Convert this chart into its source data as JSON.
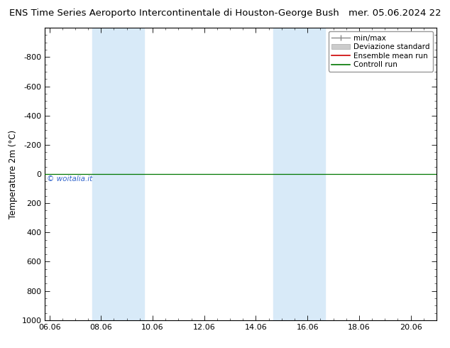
{
  "title_left": "ENS Time Series Aeroporto Intercontinentale di Houston-George Bush",
  "title_right": "mer. 05.06.2024 22",
  "ylabel": "Temperature 2m (°C)",
  "watermark": "© woitalia.it",
  "ylim_bottom": 1000,
  "ylim_top": -1000,
  "xtick_labels": [
    "06.06",
    "08.06",
    "10.06",
    "12.06",
    "14.06",
    "16.06",
    "18.06",
    "20.06"
  ],
  "xtick_positions": [
    6,
    8,
    10,
    12,
    14,
    16,
    18,
    20
  ],
  "ytick_values": [
    -800,
    -600,
    -400,
    -200,
    0,
    200,
    400,
    600,
    800,
    1000
  ],
  "shaded_bands": [
    {
      "xmin": 7.67,
      "xmax": 9.67
    },
    {
      "xmin": 14.67,
      "xmax": 16.67
    }
  ],
  "xlim": [
    5.83,
    21.0
  ],
  "horizontal_line_y": 0,
  "green_line_color": "#007700",
  "red_line_color": "#cc0000",
  "legend_entries": [
    "min/max",
    "Deviazione standard",
    "Ensemble mean run",
    "Controll run"
  ],
  "background_color": "#ffffff",
  "band_color": "#d8eaf8",
  "axis_bg_color": "#ffffff",
  "title_fontsize": 9.5,
  "label_fontsize": 8.5,
  "tick_fontsize": 8,
  "legend_fontsize": 7.5
}
